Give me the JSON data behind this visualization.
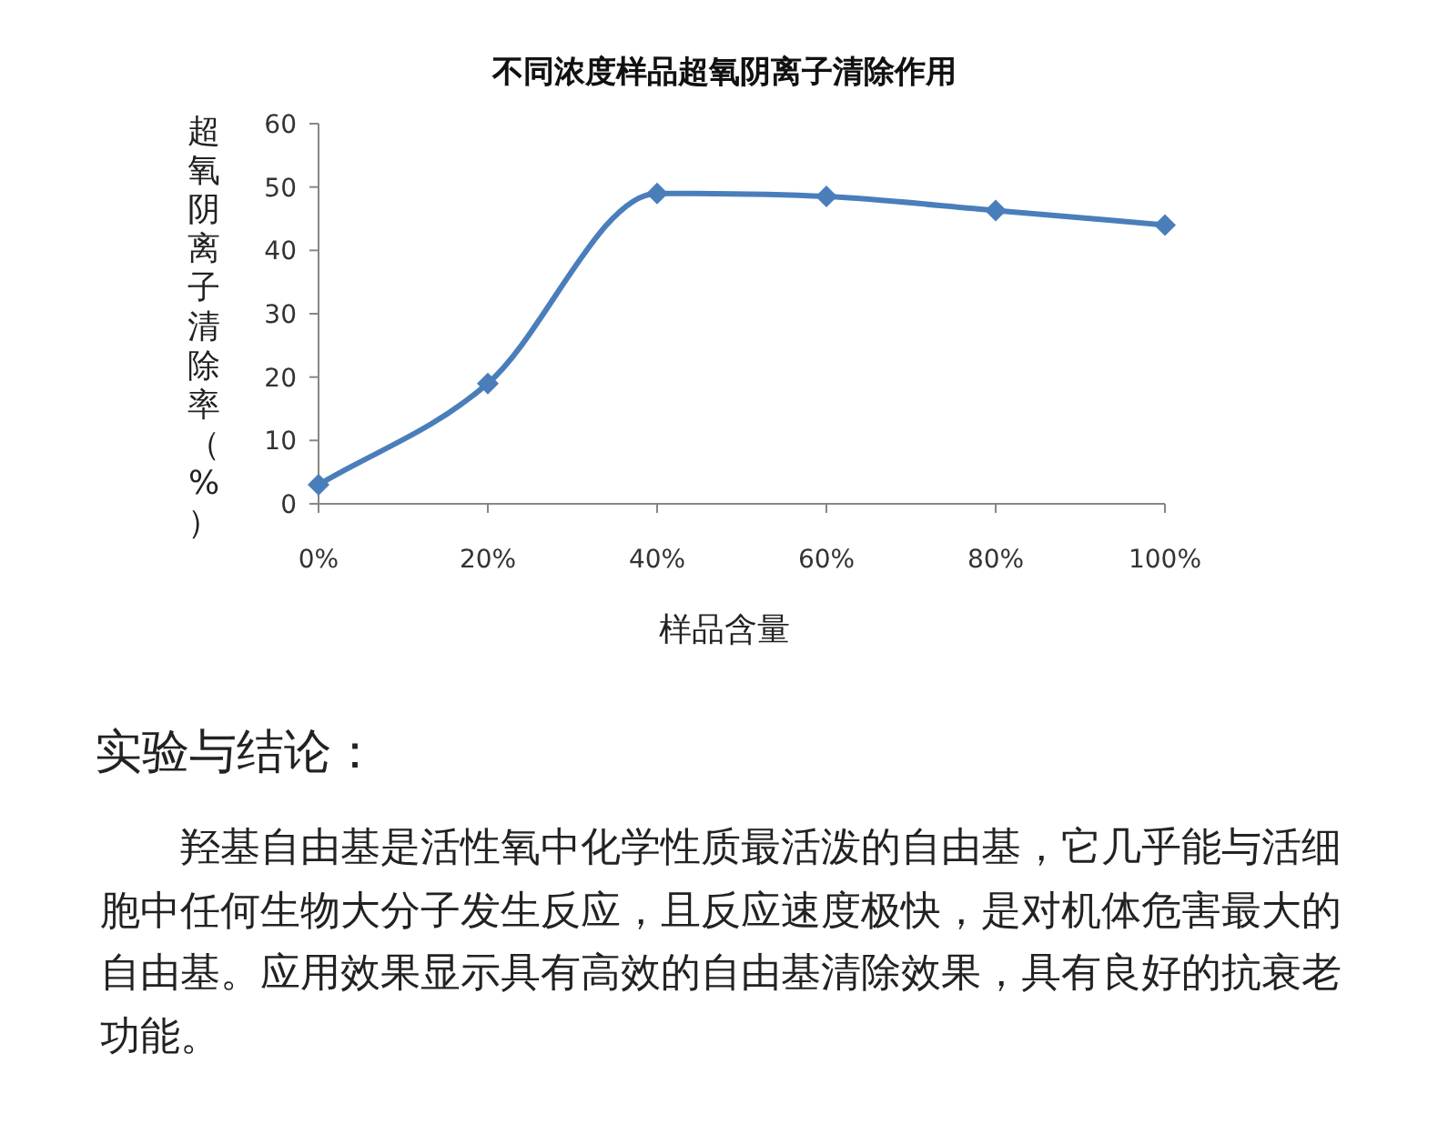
{
  "chart_data": {
    "type": "line",
    "title": "不同浓度样品超氧阴离子清除作用",
    "xlabel": "样品含量",
    "ylabel": "超氧阴离子清除率（%）",
    "categories": [
      "0%",
      "20%",
      "40%",
      "60%",
      "80%",
      "100%"
    ],
    "series": [
      {
        "color": "#4a7ebb",
        "values": [
          3,
          19,
          49,
          48.5,
          46.3,
          44
        ]
      }
    ],
    "ylim": [
      0,
      60
    ],
    "yticks": [
      0,
      10,
      20,
      30,
      40,
      50,
      60
    ],
    "marker": "diamond",
    "line_style": "solid",
    "grid": false,
    "annotations": [
      "实验与结论：",
      "羟基自由基是活性氧中化学性质最活泼的自由基，它几乎能与活细胞中任何生物大分子发生反应，且反应速度极快，是对机体危害最大的自由基。应用效果显示具有高效的自由基清除效果，具有良好的抗衰老功能。"
    ]
  }
}
